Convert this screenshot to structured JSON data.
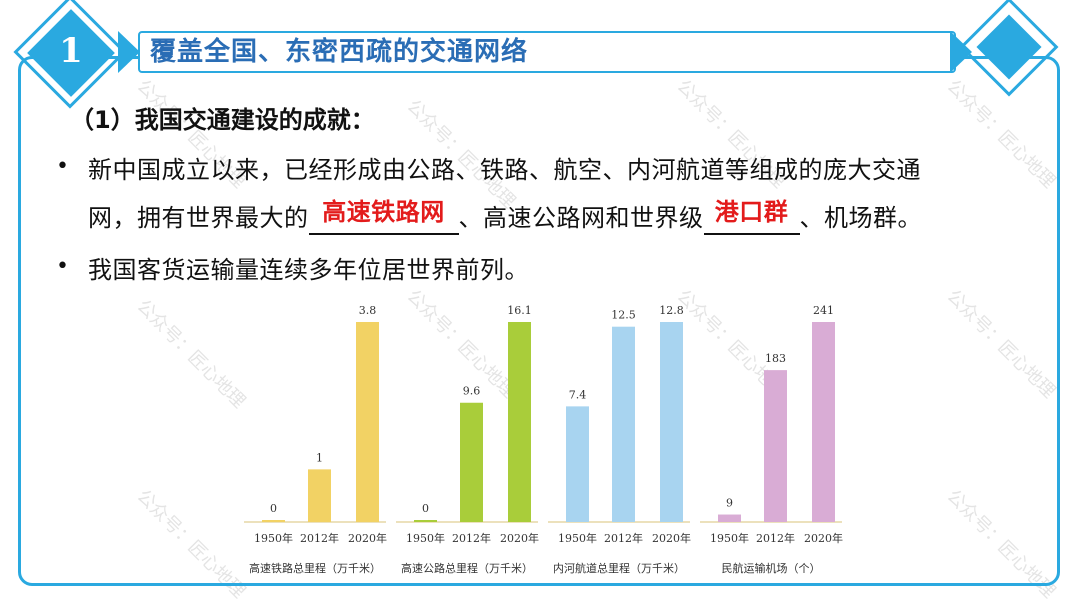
{
  "header": {
    "number": "1",
    "title": "覆盖全国、东密西疏的交通网络"
  },
  "section": {
    "heading": "（1）我国交通建设的成就："
  },
  "paragraphs": {
    "p1_line1": "新中国成立以来，已经形成由公路、铁路、航空、内河航道等组成的庞大交通",
    "p1_line2_a": "网，拥有世界最大的",
    "p1_blank1": "高速铁路网",
    "p1_line2_b": "、高速公路网和世界级",
    "p1_blank2": "港口群",
    "p1_line2_c": "、机场群。",
    "p2": "我国客货运输量连续多年位居世界前列。"
  },
  "watermark": "公众号：匠心地理",
  "colors": {
    "accent": "#2aa9e0",
    "title": "#2a6db5",
    "answer": "#e31b1b",
    "rail": "#f2d264",
    "highway": "#a9cd3a",
    "waterway": "#a8d4f0",
    "airport": "#d9acd5"
  },
  "chart_data": {
    "type": "bar",
    "groups": [
      {
        "name": "高速铁路总里程（万千米）",
        "categories": [
          "1950年",
          "2012年",
          "2020年"
        ],
        "values": [
          0,
          1,
          3.8
        ],
        "labels": [
          "0",
          "1",
          "3.8"
        ],
        "color": "#f2d264"
      },
      {
        "name": "高速公路总里程（万千米）",
        "categories": [
          "1950年",
          "2012年",
          "2020年"
        ],
        "values": [
          0,
          9.6,
          16.1
        ],
        "labels": [
          "0",
          "9.6",
          "16.1"
        ],
        "color": "#a9cd3a"
      },
      {
        "name": "内河航道总里程（万千米）",
        "categories": [
          "1950年",
          "2012年",
          "2020年"
        ],
        "values": [
          7.4,
          12.5,
          12.8
        ],
        "labels": [
          "7.4",
          "12.5",
          "12.8"
        ],
        "color": "#a8d4f0"
      },
      {
        "name": "民航运输机场（个）",
        "categories": [
          "1950年",
          "2012年",
          "2020年"
        ],
        "values": [
          9,
          183,
          241
        ],
        "labels": [
          "9",
          "183",
          "241"
        ],
        "color": "#d9acd5"
      }
    ]
  }
}
